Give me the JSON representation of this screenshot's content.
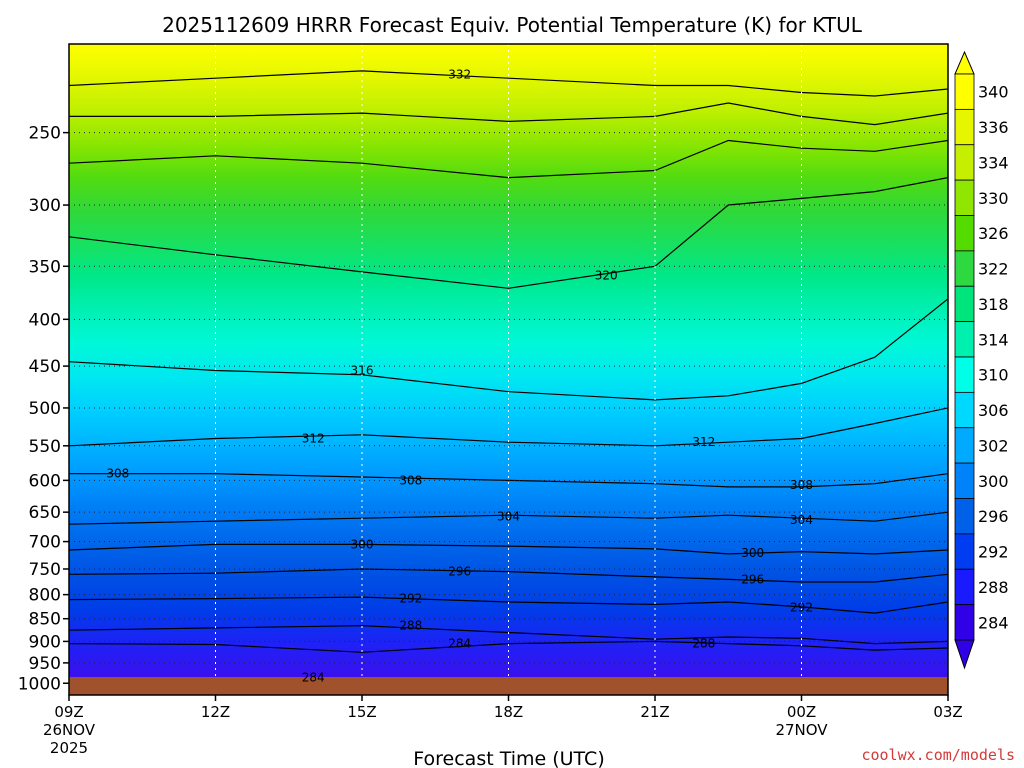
{
  "chart_data": {
    "type": "contour",
    "title": "2025112609 HRRR Forecast Equiv. Potential Temperature (K) for KTUL",
    "xlabel": "Forecast Time (UTC)",
    "ylabel": "",
    "x_ticks": [
      {
        "label": "09Z",
        "sub": [
          "26NOV",
          "2025"
        ],
        "hour": 0
      },
      {
        "label": "12Z",
        "sub": [],
        "hour": 3
      },
      {
        "label": "15Z",
        "sub": [],
        "hour": 6
      },
      {
        "label": "18Z",
        "sub": [],
        "hour": 9
      },
      {
        "label": "21Z",
        "sub": [],
        "hour": 12
      },
      {
        "label": "00Z",
        "sub": [
          "27NOV"
        ],
        "hour": 15
      },
      {
        "label": "03Z",
        "sub": [],
        "hour": 18
      }
    ],
    "x_range_hours": [
      0,
      18
    ],
    "y_ticks": [
      "250",
      "300",
      "350",
      "400",
      "450",
      "500",
      "550",
      "600",
      "650",
      "700",
      "750",
      "800",
      "850",
      "900",
      "950",
      "1000"
    ],
    "y_range_hPa": [
      200,
      1030
    ],
    "levels": [
      284,
      286,
      288,
      290,
      292,
      294,
      296,
      298,
      300,
      302,
      304,
      306,
      308,
      310,
      312,
      314,
      316,
      318,
      320,
      322,
      324,
      326,
      328,
      330,
      332,
      334,
      336,
      338,
      340
    ],
    "colorbar": {
      "labels": [
        "340",
        "336",
        "334",
        "330",
        "326",
        "322",
        "318",
        "314",
        "310",
        "306",
        "302",
        "300",
        "296",
        "292",
        "288",
        "284"
      ],
      "colors": [
        "#ffff00",
        "#e6f500",
        "#c6ee00",
        "#90e600",
        "#54dc00",
        "#2ed840",
        "#00e47c",
        "#00f0b0",
        "#00ffe8",
        "#00d8ff",
        "#00aaff",
        "#0082f8",
        "#0060e8",
        "#003cf0",
        "#1a1aff",
        "#3000e6"
      ]
    },
    "isotherm_profiles_hPa": {
      "hours": [
        0,
        3,
        6,
        9,
        12,
        13.5,
        15,
        16.5,
        18
      ],
      "284": [
        905,
        907,
        925,
        905,
        900,
        905,
        910,
        920,
        915
      ],
      "288": [
        875,
        870,
        865,
        880,
        895,
        890,
        893,
        905,
        900
      ],
      "292": [
        810,
        808,
        805,
        815,
        820,
        815,
        825,
        838,
        815
      ],
      "296": [
        760,
        758,
        750,
        755,
        765,
        770,
        775,
        775,
        760
      ],
      "300": [
        715,
        705,
        705,
        708,
        713,
        722,
        718,
        722,
        715
      ],
      "304": [
        670,
        665,
        660,
        655,
        660,
        655,
        660,
        665,
        650
      ],
      "308": [
        590,
        590,
        595,
        600,
        605,
        610,
        610,
        605,
        590
      ],
      "312": [
        550,
        540,
        535,
        545,
        550,
        545,
        540,
        520,
        500
      ],
      "316": [
        445,
        455,
        460,
        480,
        490,
        485,
        470,
        440,
        380
      ],
      "320": [
        325,
        340,
        355,
        370,
        350,
        300,
        295,
        290,
        280
      ],
      "324": [
        270,
        265,
        270,
        280,
        275,
        255,
        260,
        262,
        255
      ],
      "328": [
        240,
        240,
        238,
        243,
        240,
        232,
        240,
        245,
        238
      ],
      "332": [
        222,
        218,
        214,
        218,
        222,
        222,
        226,
        228,
        224
      ]
    },
    "contour_labels": [
      {
        "text": "332",
        "hour": 8.0,
        "hPa": 216
      },
      {
        "text": "320",
        "hour": 11.0,
        "hPa": 358
      },
      {
        "text": "316",
        "hour": 6.0,
        "hPa": 455
      },
      {
        "text": "312",
        "hour": 5.0,
        "hPa": 540
      },
      {
        "text": "312",
        "hour": 13.0,
        "hPa": 545
      },
      {
        "text": "308",
        "hour": 1.0,
        "hPa": 590
      },
      {
        "text": "308",
        "hour": 7.0,
        "hPa": 600
      },
      {
        "text": "308",
        "hour": 15.0,
        "hPa": 607
      },
      {
        "text": "304",
        "hour": 9.0,
        "hPa": 657
      },
      {
        "text": "304",
        "hour": 15.0,
        "hPa": 663
      },
      {
        "text": "300",
        "hour": 6.0,
        "hPa": 705
      },
      {
        "text": "300",
        "hour": 14.0,
        "hPa": 720
      },
      {
        "text": "296",
        "hour": 8.0,
        "hPa": 755
      },
      {
        "text": "296",
        "hour": 14.0,
        "hPa": 770
      },
      {
        "text": "292",
        "hour": 7.0,
        "hPa": 808
      },
      {
        "text": "292",
        "hour": 15.0,
        "hPa": 826
      },
      {
        "text": "288",
        "hour": 7.0,
        "hPa": 865
      },
      {
        "text": "288",
        "hour": 13.0,
        "hPa": 905
      },
      {
        "text": "284",
        "hour": 8.0,
        "hPa": 905
      },
      {
        "text": "284",
        "hour": 5.0,
        "hPa": 985
      }
    ],
    "ground_level_hPa": 1000
  },
  "footer": {
    "credit": "coolwx.com/models"
  }
}
